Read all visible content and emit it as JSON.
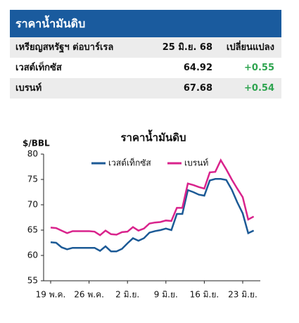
{
  "table": {
    "title": "ราคาน้ำมันดิบ",
    "columns": [
      "เหรียญสหรัฐฯ ต่อบาร์เรล",
      "25 มิ.ย. 68",
      "เปลี่ยนแปลง"
    ],
    "rows": [
      [
        "เวสต์เท็กซัส",
        "64.92",
        "+0.55"
      ],
      [
        "เบรนท์",
        "67.68",
        "+0.54"
      ]
    ]
  },
  "chart_data": {
    "type": "line",
    "title": "ราคาน้ำมันดิบ",
    "y_label": "$/BBL",
    "categories": [
      "19 พ.ค.",
      null,
      null,
      null,
      null,
      null,
      null,
      "26 พ.ค.",
      null,
      null,
      null,
      null,
      null,
      null,
      "2 มิ.ย.",
      null,
      null,
      null,
      null,
      null,
      null,
      "9 มิ.ย.",
      null,
      null,
      null,
      null,
      null,
      null,
      "16 มิ.ย.",
      null,
      null,
      null,
      null,
      null,
      null,
      "23 มิ.ย.",
      null,
      null
    ],
    "series": [
      {
        "name": "เวสต์เท็กซัส",
        "color": "#1c5a96",
        "values": [
          62.6,
          62.5,
          61.6,
          61.2,
          61.5,
          61.5,
          61.5,
          61.5,
          61.5,
          60.9,
          61.8,
          60.8,
          60.8,
          61.3,
          62.4,
          63.4,
          62.9,
          63.4,
          64.5,
          64.8,
          65.0,
          65.3,
          65.0,
          68.2,
          68.2,
          72.9,
          72.5,
          72.0,
          71.8,
          74.8,
          75.1,
          75.1,
          74.9,
          73.0,
          70.5,
          68.3,
          64.4,
          64.92
        ]
      },
      {
        "name": "เบรนท์",
        "color": "#d9238c",
        "values": [
          65.5,
          65.4,
          64.9,
          64.4,
          64.8,
          64.8,
          64.8,
          64.8,
          64.7,
          64.0,
          64.9,
          64.2,
          64.1,
          64.6,
          64.7,
          65.6,
          64.9,
          65.3,
          66.3,
          66.5,
          66.6,
          66.9,
          66.8,
          69.4,
          69.4,
          74.2,
          73.9,
          73.5,
          73.2,
          76.4,
          76.5,
          78.8,
          77.0,
          75.0,
          73.2,
          71.5,
          67.1,
          67.68
        ]
      }
    ],
    "ylim": [
      55,
      80
    ],
    "yticks": [
      55,
      60,
      65,
      70,
      75,
      80
    ],
    "grid": false
  }
}
